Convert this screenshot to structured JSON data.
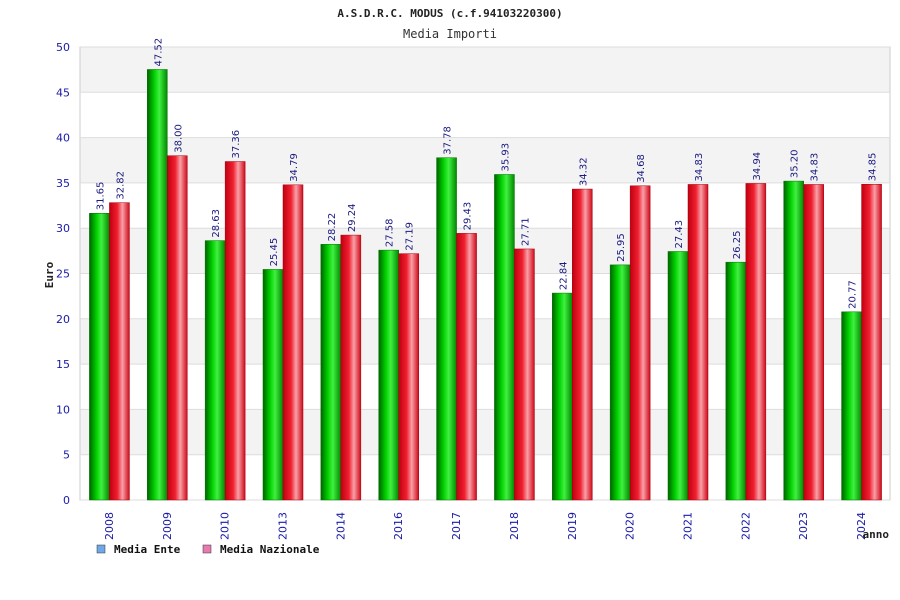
{
  "chart_data": {
    "type": "bar",
    "title": "A.S.D.R.C. MODUS (c.f.94103220300)",
    "subtitle": "Media Importi",
    "ylabel": "Euro",
    "xlabel": "anno",
    "ylim": [
      0,
      50
    ],
    "yticks": [
      0,
      5,
      10,
      15,
      20,
      25,
      30,
      35,
      40,
      45,
      50
    ],
    "grid": true,
    "legend_position": "bottom-left",
    "categories": [
      "2008",
      "2009",
      "2010",
      "2013",
      "2014",
      "2016",
      "2017",
      "2018",
      "2019",
      "2020",
      "2021",
      "2022",
      "2023",
      "2024"
    ],
    "series": [
      {
        "name": "Media Ente",
        "color": "#00b400",
        "legend_color": "#6fa8e8",
        "values": [
          31.65,
          47.52,
          28.63,
          25.45,
          28.22,
          27.58,
          37.78,
          35.93,
          22.84,
          25.95,
          27.43,
          26.25,
          35.2,
          20.77
        ],
        "labels": [
          "31.65",
          "47.52",
          "28.63",
          "25.45",
          "28.22",
          "27.58",
          "37.78",
          "35.93",
          "22.84",
          "25.95",
          "27.43",
          "26.25",
          "35.20",
          "20.77"
        ]
      },
      {
        "name": "Media Nazionale",
        "color": "#e8101c",
        "legend_color": "#e87ab0",
        "values": [
          32.82,
          38.0,
          37.36,
          34.79,
          29.24,
          27.19,
          29.43,
          27.71,
          34.32,
          34.68,
          34.83,
          34.94,
          34.83,
          34.85
        ],
        "labels": [
          "32.82",
          "38.00",
          "37.36",
          "34.79",
          "29.24",
          "27.19",
          "29.43",
          "27.71",
          "34.32",
          "34.68",
          "34.83",
          "34.94",
          "34.83",
          "34.85"
        ]
      }
    ]
  }
}
